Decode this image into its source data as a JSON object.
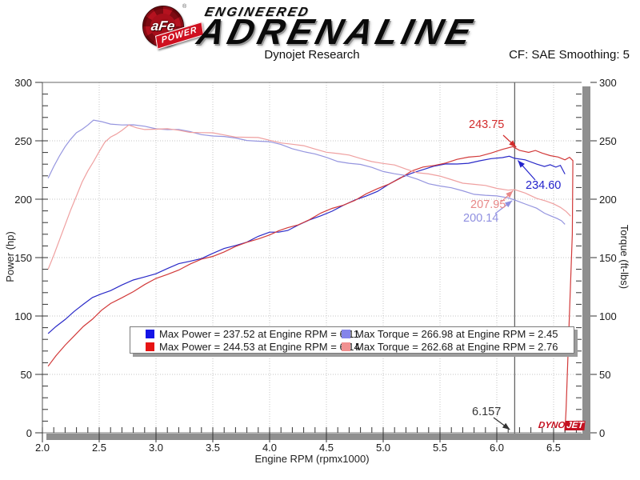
{
  "header": {
    "logo_circle_text": "aFe",
    "logo_banner_text": "POWER",
    "brand_top": "ENGINEERED",
    "brand_main": "ADRENALINE",
    "subtitle": "Dynojet Research",
    "correction_info": "CF: SAE Smoothing: 5"
  },
  "watermark": {
    "part_red": "DYNO",
    "part_boxed": "JET"
  },
  "chart_data": {
    "type": "line",
    "title": "Dynojet Research",
    "xlabel": "Engine RPM (rpmx1000)",
    "ylabel_left": "Power (hp)",
    "ylabel_right": "Torque (ft-lbs)",
    "xlim": [
      2.0,
      6.75
    ],
    "ylim_left": [
      0,
      300
    ],
    "ylim_right": [
      0,
      300
    ],
    "grid": "dotted",
    "x_tick_labels": [
      "2.0",
      "2.5",
      "3.0",
      "3.5",
      "4.0",
      "4.5",
      "5.0",
      "5.5",
      "6.0",
      "6.5"
    ],
    "y_tick_labels": [
      "0",
      "50",
      "100",
      "150",
      "200",
      "250",
      "300"
    ],
    "x_minor_step": 0.1,
    "y_minor_step": 10,
    "cursor_rpm": 6.157,
    "series": [
      {
        "name": "power-run-1",
        "axis": "left",
        "color": "#2a2ac8",
        "points": [
          [
            2.05,
            85
          ],
          [
            2.12,
            91
          ],
          [
            2.2,
            97
          ],
          [
            2.28,
            104
          ],
          [
            2.36,
            110
          ],
          [
            2.44,
            115
          ],
          [
            2.52,
            119
          ],
          [
            2.6,
            122.5
          ],
          [
            2.7,
            126.5
          ],
          [
            2.8,
            130
          ],
          [
            2.9,
            133.5
          ],
          [
            3.0,
            137
          ],
          [
            3.1,
            140.5
          ],
          [
            3.2,
            144
          ],
          [
            3.3,
            147
          ],
          [
            3.4,
            150
          ],
          [
            3.5,
            153.5
          ],
          [
            3.6,
            157
          ],
          [
            3.7,
            160.5
          ],
          [
            3.8,
            164
          ],
          [
            3.9,
            168
          ],
          [
            4.0,
            171
          ],
          [
            4.08,
            172
          ],
          [
            4.16,
            174
          ],
          [
            4.25,
            177.5
          ],
          [
            4.35,
            181.5
          ],
          [
            4.45,
            186
          ],
          [
            4.55,
            190.5
          ],
          [
            4.65,
            194.5
          ],
          [
            4.75,
            198.5
          ],
          [
            4.85,
            203
          ],
          [
            4.95,
            207.5
          ],
          [
            5.05,
            212.5
          ],
          [
            5.15,
            217.5
          ],
          [
            5.25,
            222.5
          ],
          [
            5.35,
            226
          ],
          [
            5.45,
            228
          ],
          [
            5.55,
            229.5
          ],
          [
            5.65,
            230.5
          ],
          [
            5.75,
            231.5
          ],
          [
            5.85,
            232.5
          ],
          [
            5.95,
            234
          ],
          [
            6.05,
            236
          ],
          [
            6.11,
            237.52
          ],
          [
            6.157,
            234.6
          ],
          [
            6.25,
            233
          ],
          [
            6.35,
            230.5
          ],
          [
            6.42,
            228
          ],
          [
            6.47,
            229.5
          ],
          [
            6.52,
            227.5
          ],
          [
            6.56,
            229
          ],
          [
            6.6,
            221.5
          ]
        ]
      },
      {
        "name": "power-run-2",
        "axis": "left",
        "color": "#d23a3a",
        "points": [
          [
            2.05,
            57
          ],
          [
            2.12,
            66
          ],
          [
            2.2,
            75
          ],
          [
            2.28,
            83
          ],
          [
            2.36,
            91
          ],
          [
            2.44,
            98
          ],
          [
            2.52,
            104.5
          ],
          [
            2.6,
            110
          ],
          [
            2.7,
            116
          ],
          [
            2.8,
            121.5
          ],
          [
            2.9,
            126.5
          ],
          [
            3.0,
            131.5
          ],
          [
            3.1,
            136
          ],
          [
            3.2,
            140
          ],
          [
            3.3,
            144
          ],
          [
            3.4,
            148
          ],
          [
            3.5,
            151.5
          ],
          [
            3.6,
            155.5
          ],
          [
            3.7,
            159
          ],
          [
            3.8,
            162.5
          ],
          [
            3.9,
            166.5
          ],
          [
            4.0,
            170
          ],
          [
            4.08,
            172.5
          ],
          [
            4.16,
            175
          ],
          [
            4.25,
            178.5
          ],
          [
            4.35,
            183
          ],
          [
            4.45,
            187.5
          ],
          [
            4.55,
            191.5
          ],
          [
            4.65,
            195.5
          ],
          [
            4.75,
            199.5
          ],
          [
            4.85,
            204
          ],
          [
            4.95,
            208.5
          ],
          [
            5.05,
            213.5
          ],
          [
            5.15,
            218.5
          ],
          [
            5.25,
            223.5
          ],
          [
            5.35,
            227
          ],
          [
            5.45,
            229.5
          ],
          [
            5.55,
            231.5
          ],
          [
            5.65,
            233.5
          ],
          [
            5.75,
            235.5
          ],
          [
            5.85,
            237.5
          ],
          [
            5.95,
            240
          ],
          [
            6.05,
            242
          ],
          [
            6.14,
            244.53
          ],
          [
            6.2,
            242.5
          ],
          [
            6.28,
            240.5
          ],
          [
            6.34,
            241
          ],
          [
            6.4,
            239
          ],
          [
            6.47,
            238
          ],
          [
            6.54,
            236.5
          ],
          [
            6.6,
            233
          ],
          [
            6.64,
            235.5
          ],
          [
            6.67,
            233
          ],
          [
            6.665,
            170
          ],
          [
            6.635,
            90
          ],
          [
            6.61,
            20
          ],
          [
            6.6,
            1
          ]
        ]
      },
      {
        "name": "torque-run-1",
        "axis": "right",
        "color": "#9595df",
        "points": [
          [
            2.05,
            218
          ],
          [
            2.1,
            228
          ],
          [
            2.15,
            237
          ],
          [
            2.2,
            245
          ],
          [
            2.25,
            251.5
          ],
          [
            2.3,
            256.5
          ],
          [
            2.35,
            260.5
          ],
          [
            2.4,
            264
          ],
          [
            2.45,
            266.98
          ],
          [
            2.52,
            266
          ],
          [
            2.6,
            265
          ],
          [
            2.7,
            264
          ],
          [
            2.8,
            263
          ],
          [
            2.9,
            262
          ],
          [
            3.0,
            261
          ],
          [
            3.1,
            260
          ],
          [
            3.2,
            259
          ],
          [
            3.3,
            257.5
          ],
          [
            3.4,
            256
          ],
          [
            3.5,
            254.5
          ],
          [
            3.6,
            253
          ],
          [
            3.7,
            252
          ],
          [
            3.8,
            251
          ],
          [
            3.9,
            250
          ],
          [
            4.0,
            248.5
          ],
          [
            4.1,
            246.5
          ],
          [
            4.2,
            244
          ],
          [
            4.3,
            241
          ],
          [
            4.4,
            238
          ],
          [
            4.5,
            235.5
          ],
          [
            4.6,
            233
          ],
          [
            4.7,
            231
          ],
          [
            4.8,
            229
          ],
          [
            4.9,
            227
          ],
          [
            5.0,
            224.5
          ],
          [
            5.1,
            222
          ],
          [
            5.2,
            219.5
          ],
          [
            5.3,
            217
          ],
          [
            5.4,
            214
          ],
          [
            5.5,
            211.5
          ],
          [
            5.6,
            209
          ],
          [
            5.7,
            207
          ],
          [
            5.8,
            205
          ],
          [
            5.9,
            203.5
          ],
          [
            6.0,
            202
          ],
          [
            6.1,
            201
          ],
          [
            6.157,
            200.14
          ],
          [
            6.25,
            196
          ],
          [
            6.35,
            191.5
          ],
          [
            6.42,
            188
          ],
          [
            6.48,
            185.5
          ],
          [
            6.53,
            183.5
          ],
          [
            6.57,
            181.5
          ],
          [
            6.6,
            178.5
          ]
        ]
      },
      {
        "name": "torque-run-2",
        "axis": "right",
        "color": "#efa0a0",
        "points": [
          [
            2.05,
            140
          ],
          [
            2.1,
            152
          ],
          [
            2.15,
            165
          ],
          [
            2.2,
            178
          ],
          [
            2.25,
            191
          ],
          [
            2.3,
            203
          ],
          [
            2.35,
            214
          ],
          [
            2.4,
            224
          ],
          [
            2.45,
            233
          ],
          [
            2.5,
            241
          ],
          [
            2.55,
            248
          ],
          [
            2.6,
            253
          ],
          [
            2.65,
            256.5
          ],
          [
            2.7,
            259
          ],
          [
            2.76,
            262.68
          ],
          [
            2.83,
            261
          ],
          [
            2.9,
            260.5
          ],
          [
            3.0,
            260
          ],
          [
            3.1,
            259.5
          ],
          [
            3.2,
            259
          ],
          [
            3.3,
            258
          ],
          [
            3.4,
            257
          ],
          [
            3.5,
            256
          ],
          [
            3.6,
            255
          ],
          [
            3.7,
            254
          ],
          [
            3.8,
            253
          ],
          [
            3.9,
            252
          ],
          [
            4.0,
            250.5
          ],
          [
            4.1,
            249
          ],
          [
            4.2,
            247
          ],
          [
            4.3,
            245
          ],
          [
            4.4,
            243
          ],
          [
            4.5,
            241
          ],
          [
            4.6,
            239
          ],
          [
            4.7,
            237
          ],
          [
            4.8,
            235
          ],
          [
            4.9,
            233
          ],
          [
            5.0,
            230.5
          ],
          [
            5.1,
            228.5
          ],
          [
            5.2,
            226
          ],
          [
            5.3,
            223.5
          ],
          [
            5.4,
            221.5
          ],
          [
            5.5,
            219
          ],
          [
            5.6,
            217
          ],
          [
            5.7,
            214.5
          ],
          [
            5.8,
            212.5
          ],
          [
            5.9,
            211
          ],
          [
            6.0,
            209.5
          ],
          [
            6.1,
            208.5
          ],
          [
            6.157,
            207.95
          ],
          [
            6.25,
            204.5
          ],
          [
            6.35,
            201
          ],
          [
            6.43,
            198.5
          ],
          [
            6.5,
            196
          ],
          [
            6.56,
            193
          ],
          [
            6.61,
            189.5
          ],
          [
            6.65,
            185.5
          ]
        ]
      }
    ],
    "legend": [
      {
        "swatch": "#1414e6",
        "text": "Max Power = 237.52 at Engine RPM = 6.11"
      },
      {
        "swatch": "#e61414",
        "text": "Max Power = 244.53 at Engine RPM = 6.14"
      },
      {
        "swatch": "#8484ea",
        "text": "Max Torque = 266.98 at Engine RPM = 2.45"
      },
      {
        "swatch": "#f09090",
        "text": "Max Torque = 262.68 at Engine RPM = 2.76"
      }
    ],
    "annotations": [
      {
        "text": "243.75",
        "rpm": 6.157,
        "value": 243.75,
        "color": "#d22c2c"
      },
      {
        "text": "234.60",
        "rpm": 6.157,
        "value": 234.6,
        "color": "#2323cc"
      },
      {
        "text": "207.95",
        "rpm": 6.157,
        "value": 207.95,
        "color": "#e88888"
      },
      {
        "text": "200.14",
        "rpm": 6.157,
        "value": 200.14,
        "color": "#8f8fe0"
      },
      {
        "text": "6.157",
        "rpm": 6.157,
        "value": 0,
        "color": "#333333"
      }
    ]
  }
}
